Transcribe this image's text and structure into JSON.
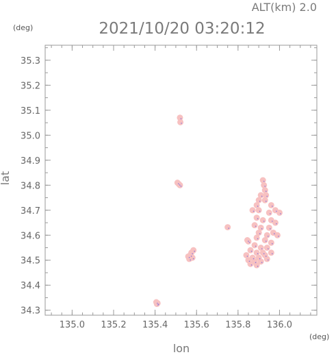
{
  "chart_data": {
    "type": "scatter",
    "title": "2021/10/20 03:20:12",
    "subtitle": "ALT(km) 2.0",
    "xlabel": "lon",
    "ylabel": "lat",
    "x_unit": "(deg)",
    "y_unit": "(deg)",
    "xlim": [
      134.87,
      136.18
    ],
    "ylim": [
      34.28,
      35.36
    ],
    "x_ticks": [
      "135.0",
      "135.2",
      "135.4",
      "135.6",
      "135.8",
      "136.0"
    ],
    "y_ticks": [
      "34.3",
      "34.4",
      "34.5",
      "34.6",
      "34.7",
      "34.8",
      "34.9",
      "35.0",
      "35.1",
      "35.2",
      "35.3"
    ],
    "grid": false,
    "colors": {
      "fill": "#f7c1c1",
      "edge": "#4444ee",
      "axis": "#999999"
    },
    "series": [
      {
        "points": [
          [
            135.406,
            34.332
          ],
          [
            135.412,
            34.328
          ],
          [
            135.409,
            34.325
          ],
          [
            135.52,
            35.07
          ],
          [
            135.522,
            35.052
          ],
          [
            135.508,
            34.81
          ],
          [
            135.514,
            34.805
          ],
          [
            135.52,
            34.8
          ],
          [
            135.56,
            34.515
          ],
          [
            135.57,
            34.52
          ],
          [
            135.58,
            34.51
          ],
          [
            135.585,
            34.54
          ],
          [
            135.575,
            34.53
          ],
          [
            135.565,
            34.505
          ],
          [
            135.75,
            34.632
          ],
          [
            135.845,
            34.58
          ],
          [
            135.85,
            34.575
          ],
          [
            135.92,
            34.82
          ],
          [
            135.925,
            34.8
          ],
          [
            135.93,
            34.78
          ],
          [
            135.91,
            34.76
          ],
          [
            135.935,
            34.76
          ],
          [
            135.9,
            34.74
          ],
          [
            135.89,
            34.72
          ],
          [
            135.93,
            34.74
          ],
          [
            135.96,
            34.72
          ],
          [
            135.98,
            34.7
          ],
          [
            135.87,
            34.7
          ],
          [
            135.9,
            34.7
          ],
          [
            135.95,
            34.69
          ],
          [
            135.89,
            34.67
          ],
          [
            135.92,
            34.66
          ],
          [
            135.96,
            34.66
          ],
          [
            135.88,
            34.64
          ],
          [
            135.91,
            34.63
          ],
          [
            135.95,
            34.63
          ],
          [
            135.98,
            34.65
          ],
          [
            135.9,
            34.61
          ],
          [
            135.94,
            34.6
          ],
          [
            135.97,
            34.61
          ],
          [
            135.89,
            34.59
          ],
          [
            135.93,
            34.58
          ],
          [
            135.96,
            34.57
          ],
          [
            135.88,
            34.56
          ],
          [
            135.91,
            34.55
          ],
          [
            135.94,
            34.55
          ],
          [
            135.86,
            34.54
          ],
          [
            135.89,
            34.53
          ],
          [
            135.92,
            34.53
          ],
          [
            135.84,
            34.52
          ],
          [
            135.87,
            34.51
          ],
          [
            135.9,
            34.51
          ],
          [
            135.93,
            34.52
          ],
          [
            135.85,
            34.5
          ],
          [
            135.88,
            34.495
          ],
          [
            135.91,
            34.495
          ],
          [
            135.94,
            34.505
          ],
          [
            135.86,
            34.485
          ],
          [
            135.89,
            34.48
          ],
          [
            135.96,
            34.53
          ],
          [
            135.99,
            34.6
          ],
          [
            136.0,
            34.69
          ]
        ]
      }
    ]
  }
}
